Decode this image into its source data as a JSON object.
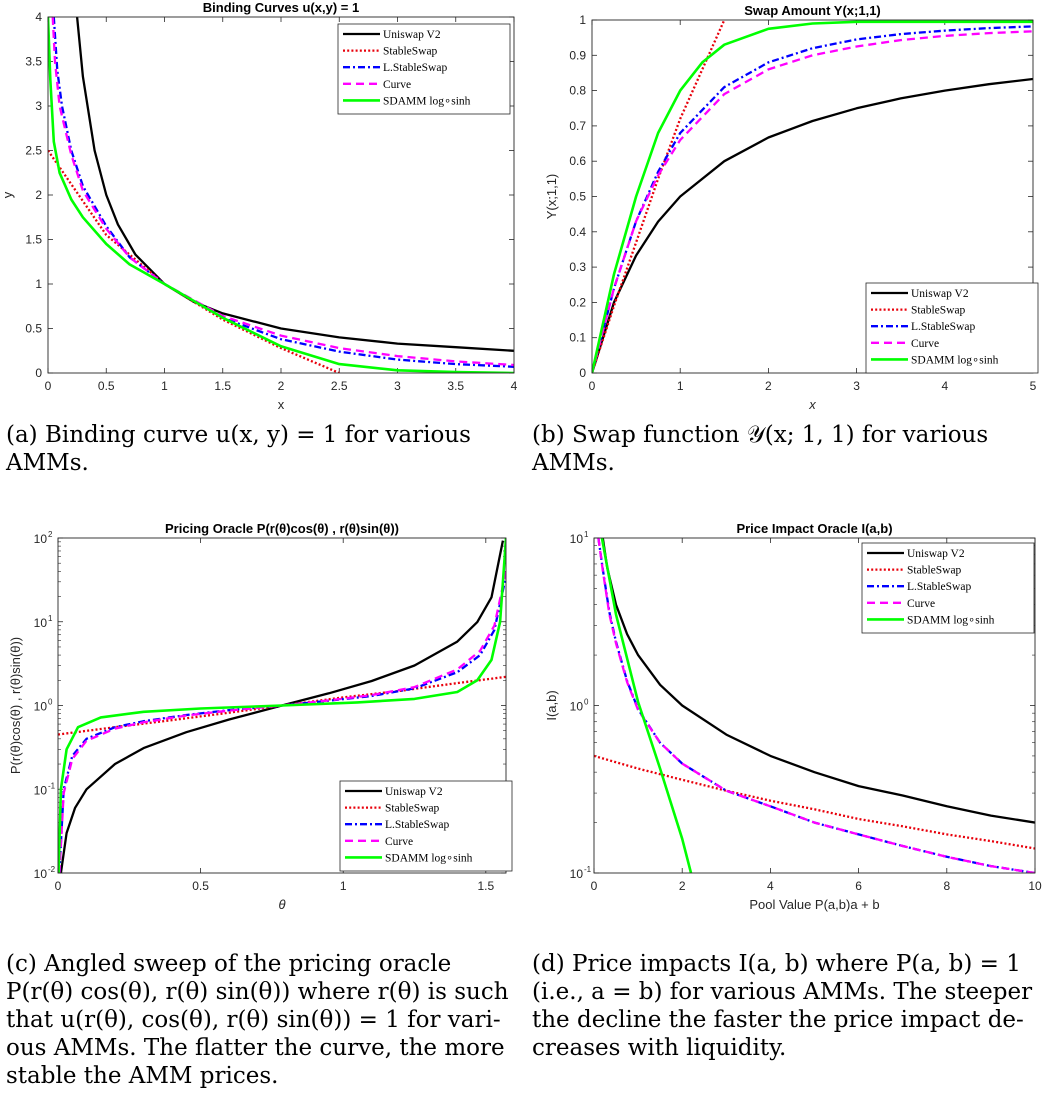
{
  "colors": {
    "uniswap": "#000000",
    "stableswap": "#e8000b",
    "lstableswap": "#0000ff",
    "curve": "#ff00ff",
    "sdamm": "#00ff00"
  },
  "legend_labels": [
    "Uniswap V2",
    "StableSwap",
    "L.StableSwap",
    "Curve",
    "SDAMM log∘sinh"
  ],
  "chart_data": [
    {
      "id": "a",
      "type": "line",
      "title": "Binding Curves u(x,y) = 1",
      "xlabel": "x",
      "ylabel": "y",
      "xlim": [
        0,
        4
      ],
      "ylim": [
        0,
        4
      ],
      "yscale": "linear",
      "xticks": [
        0,
        0.5,
        1,
        1.5,
        2,
        2.5,
        3,
        3.5,
        4
      ],
      "xtick_labels": [
        "0",
        "0.5",
        "1",
        "1.5",
        "2",
        "2.5",
        "3",
        "3.5",
        "4"
      ],
      "yticks": [
        0,
        0.5,
        1,
        1.5,
        2,
        2.5,
        3,
        3.5,
        4
      ],
      "ytick_labels": [
        "0",
        "0.5",
        "1",
        "1.5",
        "2",
        "2.5",
        "3",
        "3.5",
        "4"
      ],
      "legend": "top-right",
      "series": [
        {
          "name": "Uniswap V2",
          "x": [
            0.25,
            0.3,
            0.4,
            0.5,
            0.6,
            0.75,
            1,
            1.25,
            1.5,
            2,
            2.5,
            3,
            3.5,
            4
          ],
          "y": [
            4,
            3.33,
            2.5,
            2,
            1.67,
            1.33,
            1,
            0.8,
            0.67,
            0.5,
            0.4,
            0.33,
            0.29,
            0.25
          ]
        },
        {
          "name": "StableSwap",
          "x": [
            0,
            0.5,
            1,
            1.5,
            2,
            2.5
          ],
          "y": [
            2.5,
            1.55,
            1.0,
            0.6,
            0.28,
            0
          ]
        },
        {
          "name": "L.StableSwap",
          "x": [
            0.05,
            0.08,
            0.12,
            0.2,
            0.3,
            0.5,
            0.7,
            1,
            1.5,
            2,
            2.5,
            3,
            3.5,
            4
          ],
          "y": [
            4,
            3.4,
            3.0,
            2.5,
            2.1,
            1.65,
            1.3,
            1.0,
            0.62,
            0.38,
            0.24,
            0.15,
            0.1,
            0.07
          ]
        },
        {
          "name": "Curve",
          "x": [
            0.04,
            0.06,
            0.1,
            0.2,
            0.3,
            0.5,
            0.7,
            1,
            1.5,
            2,
            2.5,
            3,
            3.5,
            4
          ],
          "y": [
            4,
            3.5,
            3.0,
            2.45,
            2.05,
            1.62,
            1.3,
            1.0,
            0.64,
            0.42,
            0.28,
            0.19,
            0.13,
            0.09
          ]
        },
        {
          "name": "SDAMM log∘sinh",
          "x": [
            0,
            0.02,
            0.05,
            0.1,
            0.2,
            0.3,
            0.5,
            0.7,
            1,
            1.5,
            2,
            2.5,
            3,
            3.5,
            4
          ],
          "y": [
            4,
            3.3,
            2.6,
            2.25,
            1.95,
            1.75,
            1.45,
            1.22,
            1.0,
            0.62,
            0.3,
            0.1,
            0.03,
            0.01,
            0.0
          ]
        }
      ]
    },
    {
      "id": "b",
      "type": "line",
      "title": "Swap Amount  Y(x;1,1)",
      "xlabel": "x",
      "ylabel": "Y(x;1,1)",
      "xlim": [
        0,
        5
      ],
      "ylim": [
        0,
        1
      ],
      "yscale": "linear",
      "xticks": [
        0,
        1,
        2,
        3,
        4,
        5
      ],
      "xtick_labels": [
        "0",
        "1",
        "2",
        "3",
        "4",
        "5"
      ],
      "yticks": [
        0,
        0.1,
        0.2,
        0.3,
        0.4,
        0.5,
        0.6,
        0.7,
        0.8,
        0.9,
        1
      ],
      "ytick_labels": [
        "0",
        "0.1",
        "0.2",
        "0.3",
        "0.4",
        "0.5",
        "0.6",
        "0.7",
        "0.8",
        "0.9",
        "1"
      ],
      "legend": "bottom-right",
      "series": [
        {
          "name": "Uniswap V2",
          "x": [
            0,
            0.25,
            0.5,
            0.75,
            1,
            1.5,
            2,
            2.5,
            3,
            3.5,
            4,
            4.5,
            5
          ],
          "y": [
            0,
            0.2,
            0.333,
            0.429,
            0.5,
            0.6,
            0.667,
            0.714,
            0.75,
            0.778,
            0.8,
            0.818,
            0.833
          ]
        },
        {
          "name": "StableSwap",
          "x": [
            0,
            0.25,
            0.5,
            0.75,
            1,
            1.25,
            1.5
          ],
          "y": [
            0,
            0.19,
            0.37,
            0.55,
            0.72,
            0.86,
            1.0
          ]
        },
        {
          "name": "L.StableSwap",
          "x": [
            0,
            0.25,
            0.5,
            0.75,
            1,
            1.5,
            2,
            2.5,
            3,
            3.5,
            4,
            4.5,
            5
          ],
          "y": [
            0,
            0.24,
            0.43,
            0.57,
            0.68,
            0.81,
            0.88,
            0.92,
            0.945,
            0.96,
            0.97,
            0.977,
            0.982
          ]
        },
        {
          "name": "Curve",
          "x": [
            0,
            0.25,
            0.5,
            0.75,
            1,
            1.5,
            2,
            2.5,
            3,
            3.5,
            4,
            4.5,
            5
          ],
          "y": [
            0,
            0.24,
            0.43,
            0.56,
            0.66,
            0.79,
            0.86,
            0.9,
            0.925,
            0.943,
            0.955,
            0.963,
            0.968
          ]
        },
        {
          "name": "SDAMM log∘sinh",
          "x": [
            0,
            0.25,
            0.5,
            0.75,
            1,
            1.25,
            1.5,
            2,
            2.5,
            3,
            3.5,
            4,
            5
          ],
          "y": [
            0,
            0.28,
            0.5,
            0.68,
            0.8,
            0.88,
            0.93,
            0.975,
            0.99,
            0.995,
            0.995,
            0.995,
            0.995
          ]
        }
      ]
    },
    {
      "id": "c",
      "type": "line",
      "title": "Pricing Oracle P(r(θ)cos(θ) , r(θ)sin(θ))",
      "xlabel": "θ",
      "ylabel": "P(r(θ)cos(θ) , r(θ)sin(θ))",
      "xlim": [
        0,
        1.5708
      ],
      "ylim": [
        0.01,
        100
      ],
      "yscale": "log",
      "xticks": [
        0,
        0.5,
        1,
        1.5
      ],
      "xtick_labels": [
        "0",
        "0.5",
        "1",
        "1.5"
      ],
      "yticks": [
        0.01,
        0.1,
        1,
        10,
        100
      ],
      "ytick_labels": [
        "10",
        "10",
        "10",
        "10",
        "10"
      ],
      "ytick_exponents": [
        "-2",
        "-1",
        "0",
        "1",
        "2"
      ],
      "legend": "bottom-right",
      "series": [
        {
          "name": "Uniswap V2",
          "x": [
            0.01,
            0.03,
            0.06,
            0.1,
            0.2,
            0.3,
            0.45,
            0.6,
            0.785,
            0.95,
            1.1,
            1.25,
            1.4,
            1.47,
            1.52,
            1.56
          ],
          "y": [
            0.01,
            0.03,
            0.06,
            0.1,
            0.2,
            0.31,
            0.48,
            0.68,
            1.0,
            1.4,
            1.96,
            3.0,
            5.8,
            9.9,
            19.6,
            93
          ]
        },
        {
          "name": "StableSwap",
          "x": [
            0,
            0.2,
            0.4,
            0.6,
            0.785,
            1.0,
            1.2,
            1.4,
            1.5708
          ],
          "y": [
            0.45,
            0.55,
            0.67,
            0.82,
            1.0,
            1.25,
            1.5,
            1.85,
            2.2
          ]
        },
        {
          "name": "L.StableSwap",
          "x": [
            0.005,
            0.02,
            0.05,
            0.1,
            0.2,
            0.3,
            0.45,
            0.6,
            0.785,
            0.95,
            1.1,
            1.25,
            1.4,
            1.48,
            1.53,
            1.5708
          ],
          "y": [
            0.01,
            0.1,
            0.25,
            0.4,
            0.55,
            0.65,
            0.77,
            0.88,
            1.0,
            1.14,
            1.3,
            1.6,
            2.5,
            4.0,
            8.0,
            35
          ]
        },
        {
          "name": "Curve",
          "x": [
            0.005,
            0.02,
            0.05,
            0.1,
            0.2,
            0.3,
            0.45,
            0.6,
            0.785,
            0.95,
            1.1,
            1.25,
            1.4,
            1.48,
            1.53,
            1.5708
          ],
          "y": [
            0.01,
            0.09,
            0.23,
            0.38,
            0.53,
            0.63,
            0.76,
            0.87,
            1.0,
            1.15,
            1.33,
            1.66,
            2.7,
            4.5,
            9.0,
            40
          ]
        },
        {
          "name": "SDAMM log∘sinh",
          "x": [
            0.002,
            0.01,
            0.03,
            0.07,
            0.15,
            0.3,
            0.5,
            0.785,
            1.05,
            1.25,
            1.4,
            1.47,
            1.52,
            1.55,
            1.5708
          ],
          "y": [
            0.01,
            0.1,
            0.3,
            0.55,
            0.72,
            0.84,
            0.92,
            1.0,
            1.09,
            1.2,
            1.45,
            2.0,
            3.5,
            10,
            100
          ]
        }
      ]
    },
    {
      "id": "d",
      "type": "line",
      "title": "Price Impact Oracle I(a,b)",
      "xlabel": "Pool Value P(a,b)a + b",
      "ylabel": "I(a,b)",
      "xlim": [
        0,
        10
      ],
      "ylim": [
        0.1,
        10
      ],
      "yscale": "log",
      "xticks": [
        0,
        2,
        4,
        6,
        8,
        10
      ],
      "xtick_labels": [
        "0",
        "2",
        "4",
        "6",
        "8",
        "10"
      ],
      "yticks": [
        0.1,
        1,
        10
      ],
      "ytick_labels": [
        "10",
        "10",
        "10"
      ],
      "ytick_exponents": [
        "-1",
        "0",
        "1"
      ],
      "legend": "top-right",
      "series": [
        {
          "name": "Uniswap V2",
          "x": [
            0.2,
            0.3,
            0.5,
            0.75,
            1,
            1.5,
            2,
            3,
            4,
            5,
            6,
            7,
            8,
            9,
            10
          ],
          "y": [
            10,
            6.67,
            4,
            2.67,
            2,
            1.33,
            1,
            0.67,
            0.5,
            0.4,
            0.33,
            0.29,
            0.25,
            0.22,
            0.2
          ]
        },
        {
          "name": "StableSwap",
          "x": [
            0,
            1,
            2,
            3,
            4,
            5,
            6,
            7,
            8,
            9,
            10
          ],
          "y": [
            0.5,
            0.42,
            0.36,
            0.31,
            0.27,
            0.24,
            0.21,
            0.19,
            0.17,
            0.155,
            0.14
          ]
        },
        {
          "name": "L.StableSwap",
          "x": [
            0.1,
            0.2,
            0.35,
            0.5,
            0.75,
            1,
            1.5,
            2,
            3,
            4,
            5,
            6,
            7,
            8,
            9,
            10
          ],
          "y": [
            10,
            6.5,
            3.6,
            2.4,
            1.4,
            0.95,
            0.6,
            0.45,
            0.31,
            0.25,
            0.2,
            0.17,
            0.145,
            0.125,
            0.11,
            0.1
          ]
        },
        {
          "name": "Curve",
          "x": [
            0.1,
            0.2,
            0.35,
            0.5,
            0.75,
            1,
            1.5,
            2,
            3,
            4,
            5,
            6,
            7,
            8,
            9,
            10
          ],
          "y": [
            10,
            6.4,
            3.5,
            2.35,
            1.38,
            0.94,
            0.6,
            0.45,
            0.31,
            0.25,
            0.2,
            0.17,
            0.145,
            0.125,
            0.11,
            0.1
          ]
        },
        {
          "name": "SDAMM log∘sinh",
          "x": [
            0.18,
            0.5,
            1,
            1.5,
            2,
            2.2
          ],
          "y": [
            10,
            3.5,
            1.05,
            0.42,
            0.16,
            0.1
          ]
        }
      ]
    }
  ],
  "captions": [
    {
      "id": "a",
      "lines": [
        "(a) Binding curve u(x, y) = 1 for various",
        "AMMs."
      ]
    },
    {
      "id": "b",
      "lines": [
        "(b) Swap function 𝒴(x; 1, 1) for various",
        "AMMs."
      ]
    },
    {
      "id": "c",
      "lines": [
        "(c) Angled sweep of the pricing oracle",
        "P(r(θ) cos(θ), r(θ) sin(θ)) where r(θ) is such",
        "that u(r(θ), cos(θ), r(θ) sin(θ)) = 1 for vari-",
        "ous AMMs. The flatter the curve, the more",
        "stable the AMM prices."
      ]
    },
    {
      "id": "d",
      "lines": [
        "(d) Price impacts I(a, b) where P(a, b) = 1",
        "(i.e., a = b) for various AMMs. The steeper",
        "the decline the faster the price impact de-",
        "creases with liquidity."
      ]
    }
  ]
}
